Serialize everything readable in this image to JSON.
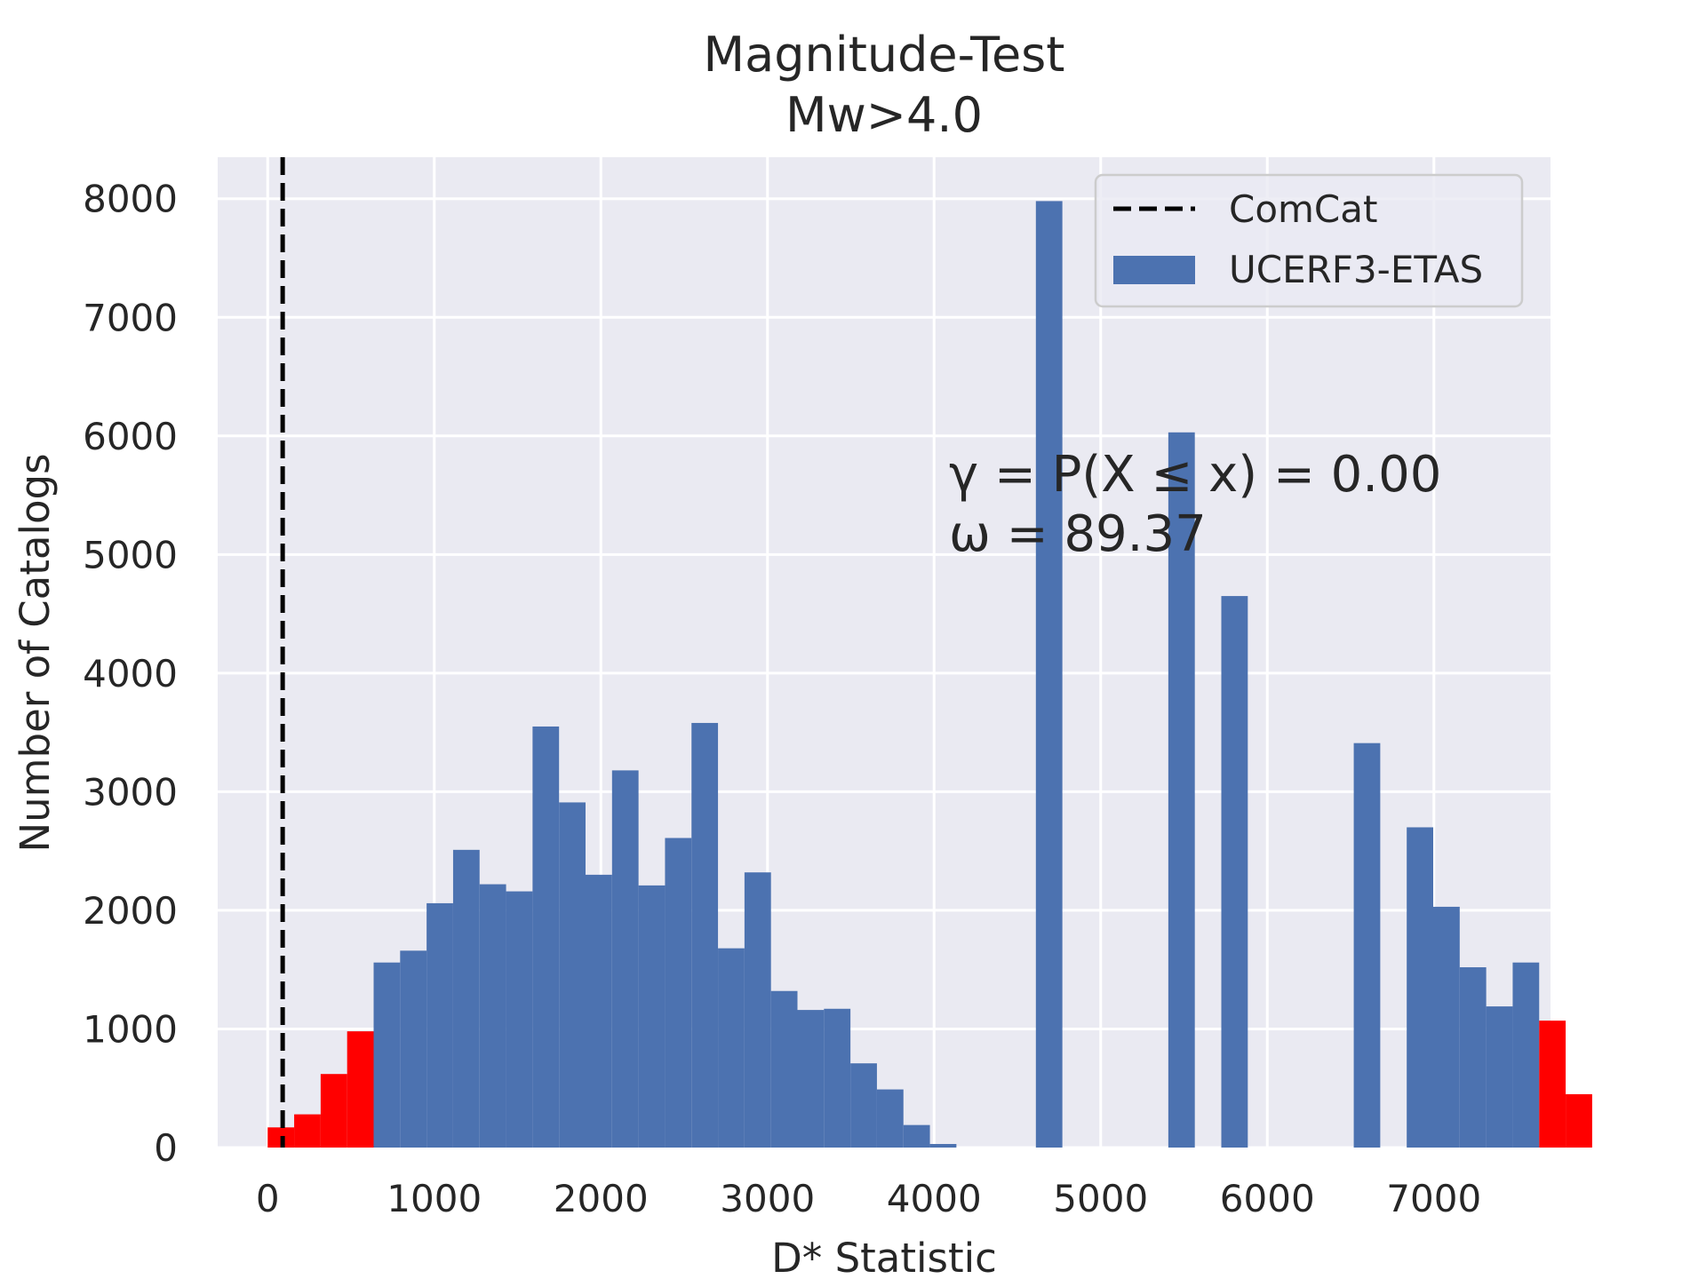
{
  "chart_data": {
    "type": "bar",
    "title": "Magnitude-Test",
    "subtitle": "Mw>4.0",
    "xlabel": "D* Statistic",
    "ylabel": "Number of Catalogs",
    "xlim": [
      -300,
      7700
    ],
    "ylim": [
      0,
      8350
    ],
    "xticks": [
      0,
      1000,
      2000,
      3000,
      4000,
      5000,
      6000,
      7000
    ],
    "yticks": [
      0,
      1000,
      2000,
      3000,
      4000,
      5000,
      6000,
      7000,
      8000
    ],
    "grid": true,
    "legend_position": "upper right",
    "bins": {
      "start": 0,
      "width": 159,
      "counts": [
        170,
        280,
        620,
        980,
        1560,
        1660,
        2060,
        2510,
        2220,
        2160,
        3550,
        2910,
        2300,
        3180,
        2210,
        2610,
        3580,
        1680,
        2320,
        1320,
        1160,
        1170,
        710,
        490,
        190,
        30,
        0,
        0,
        0,
        7980,
        0,
        0,
        0,
        0,
        6030,
        0,
        4650,
        0,
        0,
        0,
        0,
        3410,
        0,
        2700,
        2030,
        1520,
        1190,
        1560,
        1070,
        450
      ],
      "highlighted": [
        0,
        1,
        2,
        3,
        48,
        49
      ]
    },
    "observed_x": 90,
    "series": [
      {
        "name": "ComCat",
        "kind": "vertical-dashed-line",
        "color": "#000000"
      },
      {
        "name": "UCERF3-ETAS",
        "kind": "histogram",
        "color": "#4c72b0"
      }
    ],
    "highlight_color": "#ff0000",
    "annotations": [
      "γ = P(X ≤ x) = 0.00",
      "ω = 89.37"
    ]
  }
}
